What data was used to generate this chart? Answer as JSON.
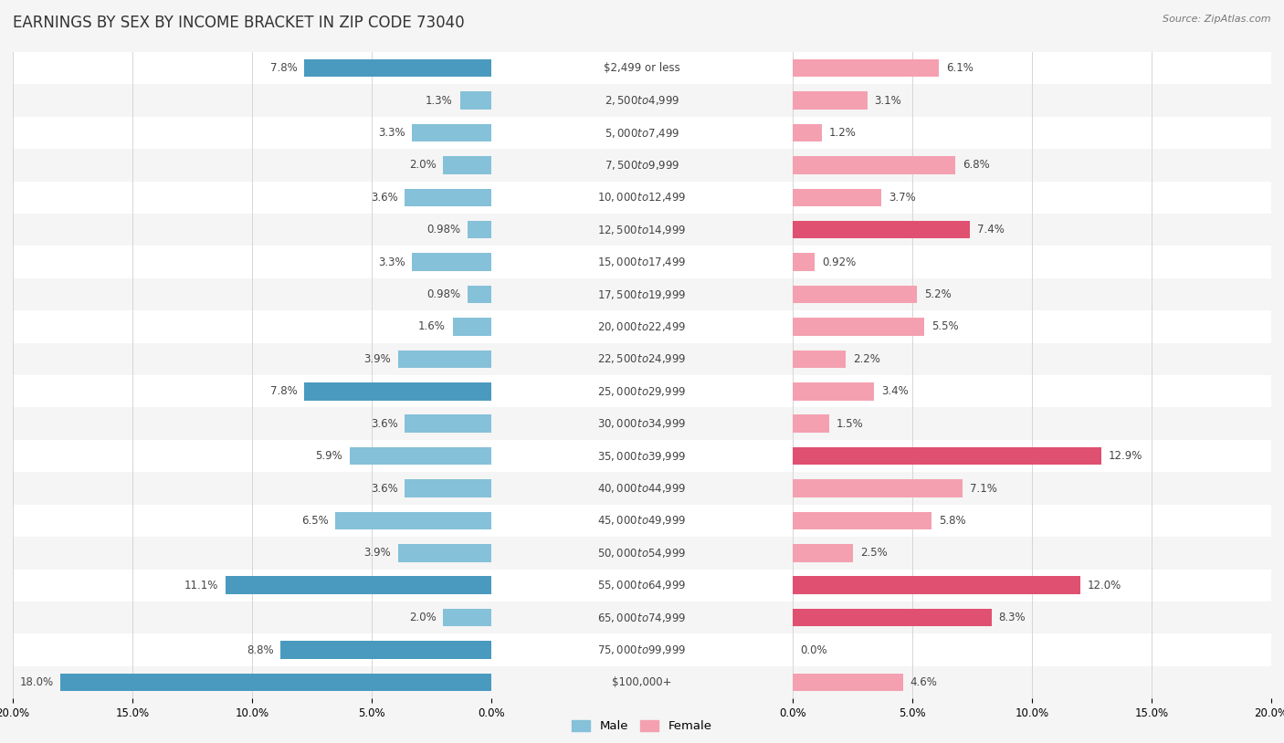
{
  "title": "EARNINGS BY SEX BY INCOME BRACKET IN ZIP CODE 73040",
  "source": "Source: ZipAtlas.com",
  "categories": [
    "$2,499 or less",
    "$2,500 to $4,999",
    "$5,000 to $7,499",
    "$7,500 to $9,999",
    "$10,000 to $12,499",
    "$12,500 to $14,999",
    "$15,000 to $17,499",
    "$17,500 to $19,999",
    "$20,000 to $22,499",
    "$22,500 to $24,999",
    "$25,000 to $29,999",
    "$30,000 to $34,999",
    "$35,000 to $39,999",
    "$40,000 to $44,999",
    "$45,000 to $49,999",
    "$50,000 to $54,999",
    "$55,000 to $64,999",
    "$65,000 to $74,999",
    "$75,000 to $99,999",
    "$100,000+"
  ],
  "male_values": [
    7.8,
    1.3,
    3.3,
    2.0,
    3.6,
    0.98,
    3.3,
    0.98,
    1.6,
    3.9,
    7.8,
    3.6,
    5.9,
    3.6,
    6.5,
    3.9,
    11.1,
    2.0,
    8.8,
    18.0
  ],
  "female_values": [
    6.1,
    3.1,
    1.2,
    6.8,
    3.7,
    7.4,
    0.92,
    5.2,
    5.5,
    2.2,
    3.4,
    1.5,
    12.9,
    7.1,
    5.8,
    2.5,
    12.0,
    8.3,
    0.0,
    4.6
  ],
  "male_color": "#85c1d8",
  "female_color": "#f4a0b0",
  "female_highlight_color": "#e05070",
  "male_highlight_color": "#4a9abf",
  "highlight_male": [
    0,
    10,
    16,
    18,
    19
  ],
  "highlight_female": [
    5,
    12,
    16,
    17
  ],
  "row_bg_even": "#f5f5f5",
  "row_bg_odd": "#ffffff",
  "bg_color": "#f5f5f5",
  "axis_max": 20.0,
  "bar_height": 0.55,
  "title_fontsize": 12,
  "tick_fontsize": 8.5,
  "legend_fontsize": 9.5,
  "value_fontsize": 8.5,
  "cat_fontsize": 8.5
}
